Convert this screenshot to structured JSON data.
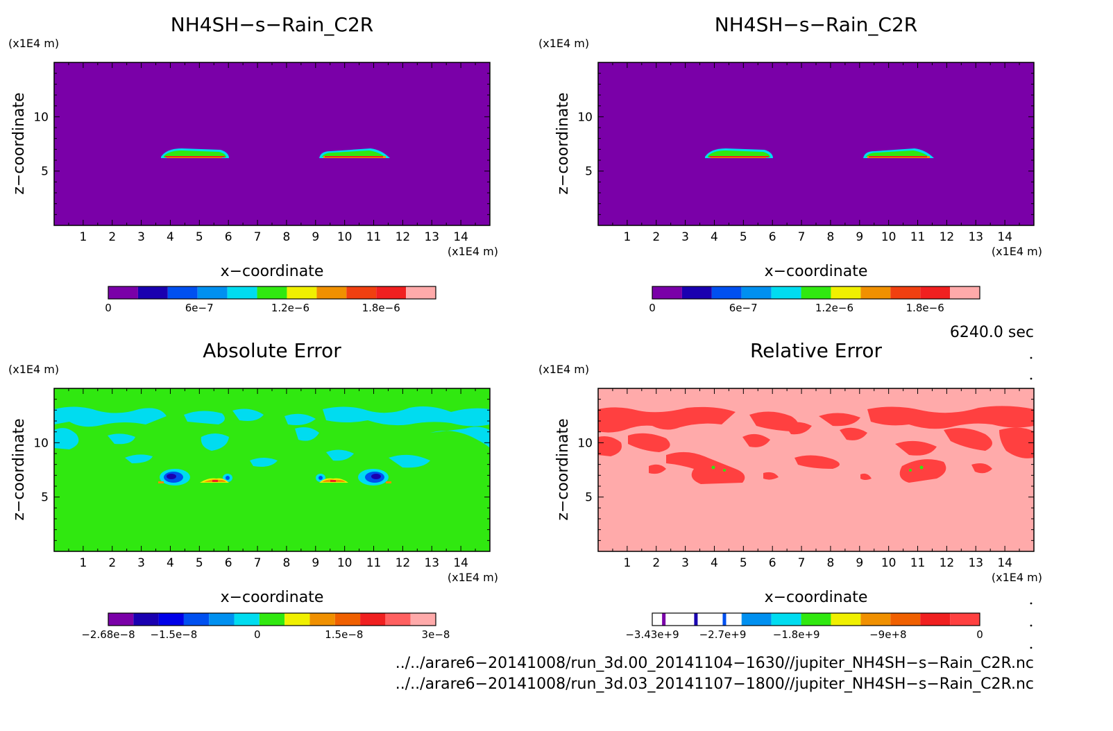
{
  "panels": [
    {
      "title": "NH4SH−s−Rain_C2R",
      "xlabel": "x−coordinate",
      "ylabel": "z−coordinate",
      "yunit": "(x1E4 m)",
      "xunit": "(x1E4 m)",
      "colorbar": {
        "labels": [
          "0",
          "6e−7",
          "1.2e−6",
          "1.8e−6"
        ],
        "colors": [
          "#7a00a8",
          "#1a00b0",
          "#0050f0",
          "#0090f0",
          "#00dcf0",
          "#30e810",
          "#f0f000",
          "#f09000",
          "#f04010",
          "#f02020",
          "#ffaaaa"
        ]
      }
    },
    {
      "title": "NH4SH−s−Rain_C2R",
      "xlabel": "x−coordinate",
      "ylabel": "z−coordinate",
      "yunit": "(x1E4 m)",
      "xunit": "(x1E4 m)",
      "colorbar": {
        "labels": [
          "0",
          "6e−7",
          "1.2e−6",
          "1.8e−6"
        ],
        "colors": [
          "#7a00a8",
          "#1a00b0",
          "#0050f0",
          "#0090f0",
          "#00dcf0",
          "#30e810",
          "#f0f000",
          "#f09000",
          "#f04010",
          "#f02020",
          "#ffaaaa"
        ]
      }
    },
    {
      "title": "Absolute Error",
      "xlabel": "x−coordinate",
      "ylabel": "z−coordinate",
      "yunit": "(x1E4 m)",
      "xunit": "(x1E4 m)",
      "colorbar": {
        "labels": [
          "−2.68e−8",
          "−1.5e−8",
          "0",
          "1.5e−8",
          "3e−8"
        ],
        "colors": [
          "#7a00a8",
          "#1a00b0",
          "#0000e8",
          "#0050f0",
          "#0090f0",
          "#00dcf0",
          "#30e810",
          "#f0f000",
          "#f09000",
          "#f06000",
          "#f02020",
          "#ff6060",
          "#ffaaaa"
        ]
      }
    },
    {
      "title": "Relative Error",
      "xlabel": "x−coordinate",
      "ylabel": "z−coordinate",
      "yunit": "(x1E4 m)",
      "xunit": "(x1E4 m)",
      "colorbar": {
        "labels": [
          "−3.43e+9",
          "−2.7e+9",
          "−1.8e+9",
          "−9e+8",
          "0"
        ],
        "colors": [
          "#ffffff",
          "#ffffff",
          "#ffffff",
          "#0090f0",
          "#00dcf0",
          "#30e810",
          "#f0f000",
          "#f09000",
          "#f06000",
          "#f02020",
          "#ff4040"
        ]
      }
    }
  ],
  "time_label": "6240.0 sec",
  "footer": [
    "../../arare6−20141008/run_3d.00_20141104−1630//jupiter_NH4SH−s−Rain_C2R.nc",
    "../../arare6−20141008/run_3d.03_20141107−1800//jupiter_NH4SH−s−Rain_C2R.nc"
  ],
  "chart_data": [
    {
      "type": "heatmap",
      "title": "NH4SH−s−Rain_C2R",
      "xlabel": "x−coordinate",
      "ylabel": "z−coordinate",
      "xlim": [
        0,
        15
      ],
      "ylim": [
        0,
        15
      ],
      "x_ticks": [
        1,
        2,
        3,
        4,
        5,
        6,
        7,
        8,
        9,
        10,
        11,
        12,
        13,
        14
      ],
      "y_ticks": [
        5,
        10
      ],
      "background_value": 0,
      "colorbar_range": [
        0,
        2.2e-06
      ],
      "features": [
        {
          "x_range": [
            3.7,
            6.0
          ],
          "z_range": [
            6.3,
            7.0
          ],
          "max_value": 1.9e-06
        },
        {
          "x_range": [
            9.1,
            11.6
          ],
          "z_range": [
            6.3,
            7.0
          ],
          "max_value": 1.9e-06
        }
      ]
    },
    {
      "type": "heatmap",
      "title": "NH4SH−s−Rain_C2R",
      "xlabel": "x−coordinate",
      "ylabel": "z−coordinate",
      "xlim": [
        0,
        15
      ],
      "ylim": [
        0,
        15
      ],
      "x_ticks": [
        1,
        2,
        3,
        4,
        5,
        6,
        7,
        8,
        9,
        10,
        11,
        12,
        13,
        14
      ],
      "y_ticks": [
        5,
        10
      ],
      "background_value": 0,
      "colorbar_range": [
        0,
        2.2e-06
      ],
      "features": [
        {
          "x_range": [
            3.7,
            6.0
          ],
          "z_range": [
            6.3,
            7.0
          ],
          "max_value": 1.9e-06
        },
        {
          "x_range": [
            9.1,
            11.6
          ],
          "z_range": [
            6.3,
            7.0
          ],
          "max_value": 1.9e-06
        }
      ]
    },
    {
      "type": "heatmap",
      "title": "Absolute Error",
      "xlabel": "x−coordinate",
      "ylabel": "z−coordinate",
      "xlim": [
        0,
        15
      ],
      "ylim": [
        0,
        15
      ],
      "x_ticks": [
        1,
        2,
        3,
        4,
        5,
        6,
        7,
        8,
        9,
        10,
        11,
        12,
        13,
        14
      ],
      "y_ticks": [
        5,
        10
      ],
      "background_value": 0,
      "colorbar_range": [
        -2.68e-08,
        3.3e-08
      ],
      "features": [
        {
          "x": 4.0,
          "z": 6.9,
          "value": -2.2e-08
        },
        {
          "x": 5.6,
          "z": 6.5,
          "value": 2.5e-08
        },
        {
          "x": 9.5,
          "z": 6.5,
          "value": 2.5e-08
        },
        {
          "x": 11.0,
          "z": 6.9,
          "value": -2.2e-08
        }
      ]
    },
    {
      "type": "heatmap",
      "title": "Relative Error",
      "xlabel": "x−coordinate",
      "ylabel": "z−coordinate",
      "xlim": [
        0,
        15
      ],
      "ylim": [
        0,
        15
      ],
      "x_ticks": [
        1,
        2,
        3,
        4,
        5,
        6,
        7,
        8,
        9,
        10,
        11,
        12,
        13,
        14
      ],
      "y_ticks": [
        5,
        10
      ],
      "background_value": 0,
      "colorbar_range": [
        -3430000000.0,
        0
      ],
      "features": [
        {
          "x_range": [
            0,
            15
          ],
          "z_range": [
            8,
            13
          ],
          "value": -100000000.0
        }
      ]
    }
  ]
}
